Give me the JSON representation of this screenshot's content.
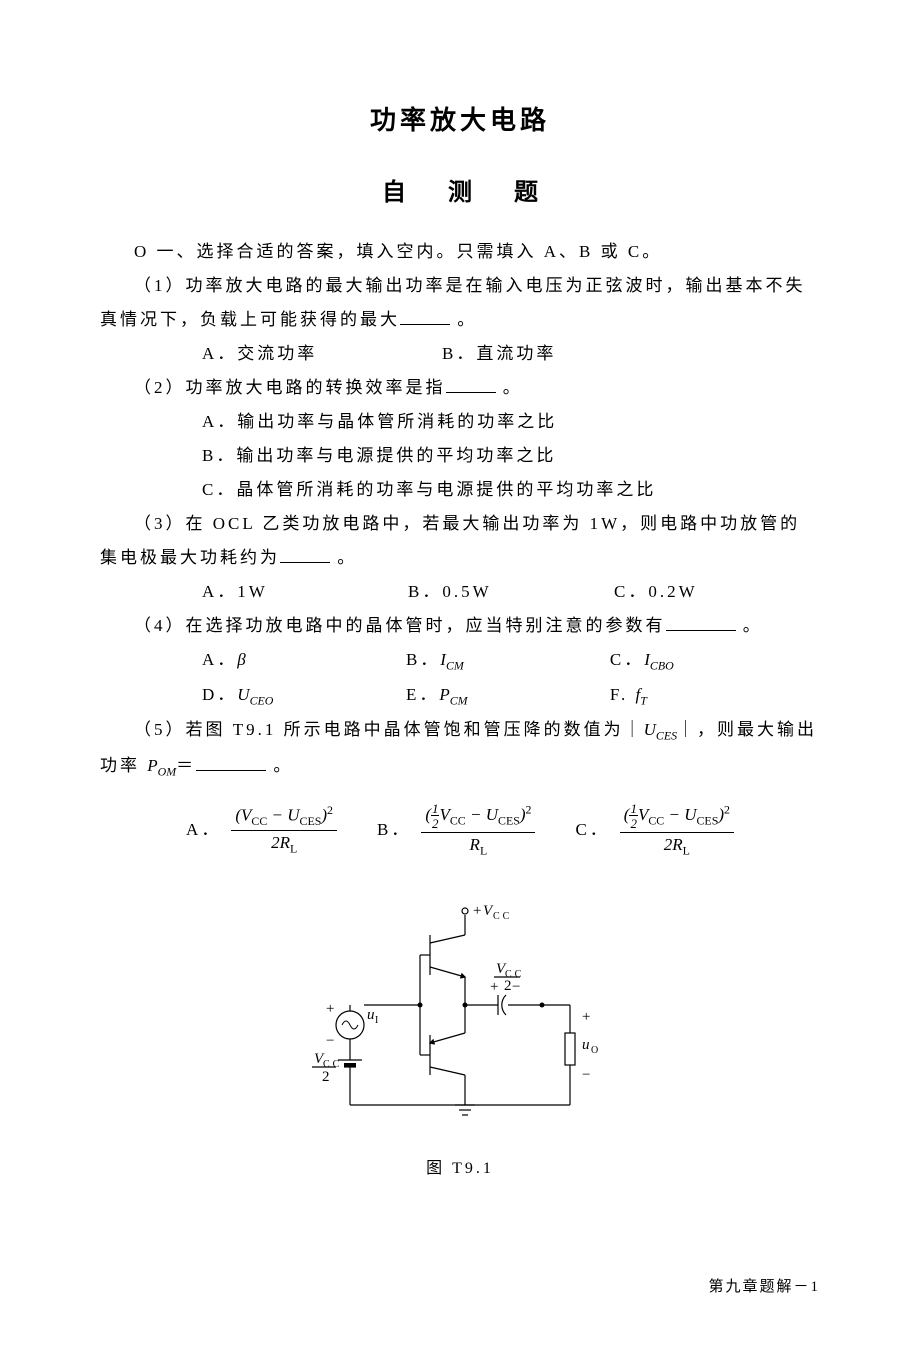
{
  "title": "功率放大电路",
  "subtitle_chars": [
    "自",
    "测",
    "题"
  ],
  "intro": "O 一、选择合适的答案，填入空内。只需填入 A、B 或 C。",
  "q1": {
    "text_a": "（1）功率放大电路的最大输出功率是在输入电压为正弦波时，输出基本不失真情况下，负载上可能获得的最大",
    "text_b": " 。",
    "opts": {
      "a": "A．交流功率",
      "b": "B．直流功率"
    }
  },
  "q2": {
    "text_a": "（2）功率放大电路的转换效率是指",
    "text_b": " 。",
    "opts": {
      "a": "A．输出功率与晶体管所消耗的功率之比",
      "b": "B．输出功率与电源提供的平均功率之比",
      "c": "C．晶体管所消耗的功率与电源提供的平均功率之比"
    }
  },
  "q3": {
    "text_a": "（3）在 OCL 乙类功放电路中，若最大输出功率为 1W，则电路中功放管的集电极最大功耗约为",
    "text_b": " 。",
    "opts": {
      "a": "A．1W",
      "b": "B．0.5W",
      "c": "C．0.2W"
    }
  },
  "q4": {
    "text_a": "（4）在选择功放电路中的晶体管时，应当特别注意的参数有",
    "text_b": " 。",
    "opts": {
      "a_pre": "A．",
      "a_sym": "β",
      "b_pre": "B．",
      "b_sym": "I",
      "b_sub": "CM",
      "c_pre": "C．",
      "c_sym": "I",
      "c_sub": "CBO",
      "d_pre": "D．",
      "d_sym": "U",
      "d_sub": "CEO",
      "e_pre": "E．",
      "e_sym": "P",
      "e_sub": "CM",
      "f_pre": "F.  ",
      "f_sym": "f",
      "f_sub": "T"
    }
  },
  "q5": {
    "text_a": "（5）若图 T9.1 所示电路中晶体管饱和管压降的数值为｜",
    "text_mid_sym": "U",
    "text_mid_sub": "CES",
    "text_b": "｜，则最大输出功率 ",
    "pom_sym": "P",
    "pom_sub": "OM",
    "text_c": "＝",
    "text_d": " 。",
    "opts": {
      "a_label": "A．",
      "b_label": "B．",
      "c_label": "C．"
    },
    "formula_parts": {
      "V": "V",
      "cc": "CC",
      "U": "U",
      "ces": "CES",
      "minus": " − ",
      "R": "R",
      "L": "L",
      "half_num": "1",
      "half_den": "2",
      "two": "2",
      "sq": "2",
      "lp": "(",
      "rp": ")"
    }
  },
  "circuit": {
    "caption": "图 T9.1",
    "labels": {
      "vcc_top_plus": "+",
      "vcc_top": "V",
      "vcc_top_sub": "CC",
      "cap_plus": "+",
      "cap_minus": "−",
      "vcc_half": "V",
      "vcc_half_sub": "CC",
      "vcc_half_den": "2",
      "ui_plus": "+",
      "ui_minus": "−",
      "ui": "u",
      "ui_sub": "I",
      "uo_plus": "+",
      "uo_minus": "−",
      "uo": "u",
      "uo_sub": "O"
    },
    "style": {
      "stroke": "#000000",
      "stroke_width": 1.2,
      "font": "italic 15px 'Times New Roman', serif",
      "font_sub": "11px 'Times New Roman', serif",
      "font_norm": "15px 'Times New Roman', serif"
    }
  },
  "footer": "第九章题解－1"
}
